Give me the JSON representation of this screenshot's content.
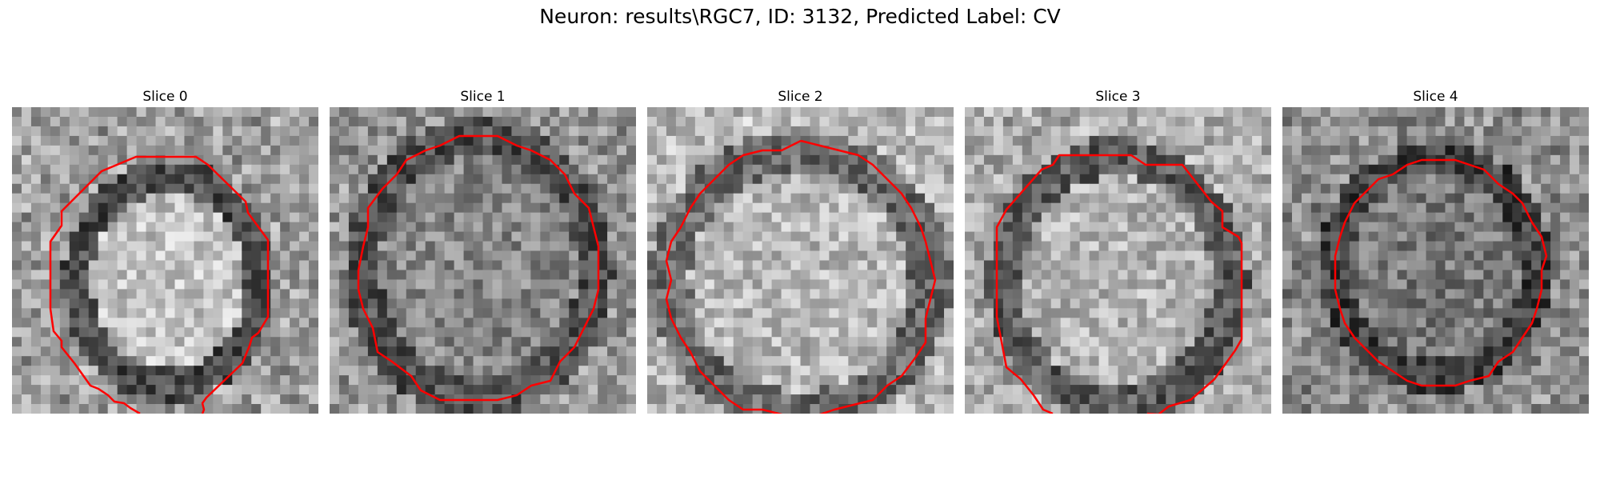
{
  "figure": {
    "title": "Neuron: results\\RGC7, ID: 3132, Predicted Label: CV",
    "contour_color": "#ff0000",
    "colormap": "gray"
  },
  "slices": [
    {
      "title": "Slice 0"
    },
    {
      "title": "Slice 1"
    },
    {
      "title": "Slice 2"
    },
    {
      "title": "Slice 3"
    },
    {
      "title": "Slice 4"
    }
  ]
}
